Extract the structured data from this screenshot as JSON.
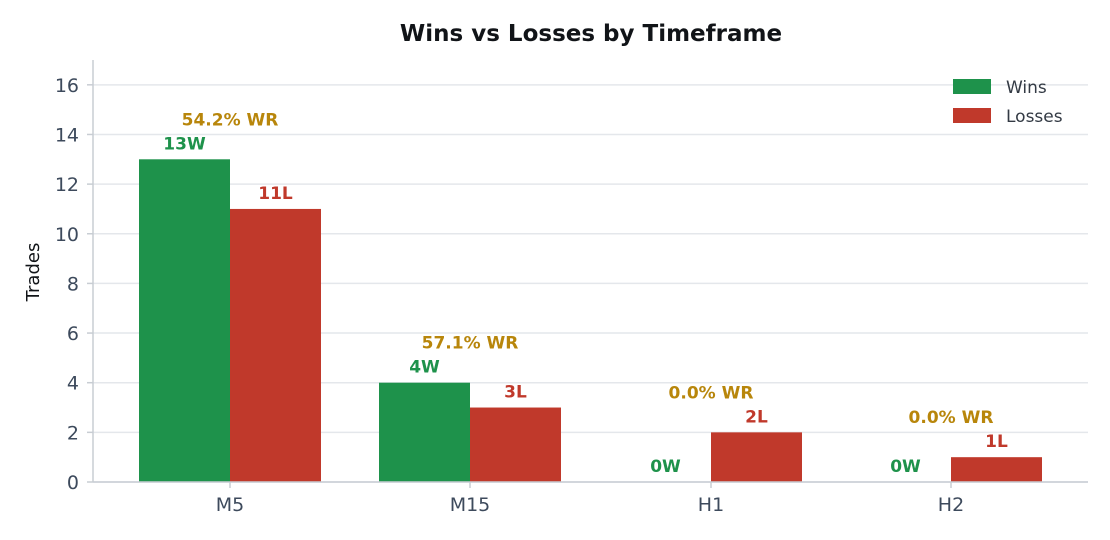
{
  "chart_data": {
    "type": "bar",
    "title": "Wins vs Losses by Timeframe",
    "xlabel": "",
    "ylabel": "Trades",
    "categories": [
      "M5",
      "M15",
      "H1",
      "H2"
    ],
    "series": [
      {
        "name": "Wins",
        "values": [
          13,
          4,
          0,
          0
        ],
        "labels": [
          "13W",
          "4W",
          "0W",
          "0W"
        ]
      },
      {
        "name": "Losses",
        "values": [
          11,
          3,
          2,
          1
        ],
        "labels": [
          "11L",
          "3L",
          "2L",
          "1L"
        ]
      }
    ],
    "win_rate_labels": [
      "54.2% WR",
      "57.1% WR",
      "0.0% WR",
      "0.0% WR"
    ],
    "ylim": [
      0,
      17
    ],
    "yticks": [
      0,
      2,
      4,
      6,
      8,
      10,
      12,
      14,
      16
    ],
    "grid": true,
    "legend_position": "top-right"
  },
  "colors": {
    "wins": "#1e924b",
    "losses": "#c0392b",
    "win_rate": "#b8860b",
    "grid": "#e4e7eb",
    "axis": "#c8cdd3"
  }
}
